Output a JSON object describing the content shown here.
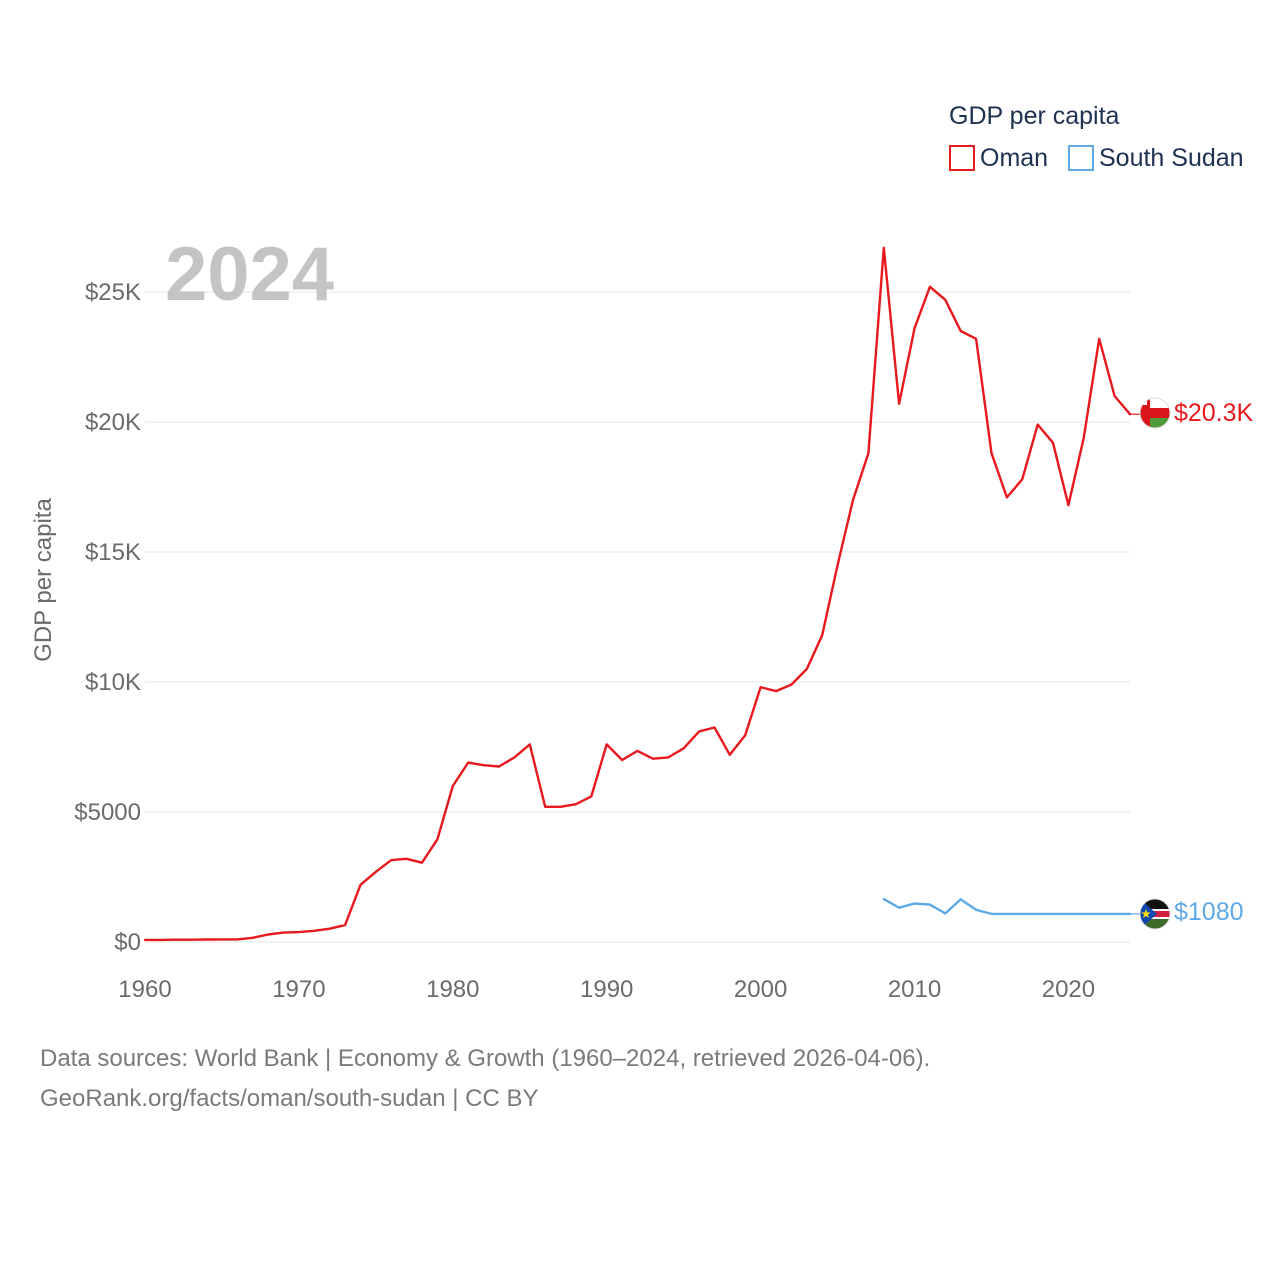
{
  "chart_data": {
    "type": "line",
    "title": "GDP per capita",
    "ylabel": "GDP per capita",
    "xlabel": "",
    "current_year": "2024",
    "xlim": [
      1960,
      2024
    ],
    "ylim": [
      0,
      25000
    ],
    "x_ticks": [
      1960,
      1970,
      1980,
      1990,
      2000,
      2010,
      2020
    ],
    "x_tick_labels": [
      "1960",
      "1970",
      "1980",
      "1990",
      "2000",
      "2010",
      "2020"
    ],
    "y_ticks": [
      0,
      5000,
      10000,
      15000,
      20000,
      25000
    ],
    "y_tick_labels": [
      "$0",
      "$5000",
      "$10K",
      "$15K",
      "$20K",
      "$25K"
    ],
    "legend": {
      "title": "GDP per capita",
      "position": "top-right"
    },
    "series": [
      {
        "name": "Oman",
        "color": "#e8191e",
        "end_label": "$20.3K",
        "x": [
          1960,
          1961,
          1962,
          1963,
          1964,
          1965,
          1966,
          1967,
          1968,
          1969,
          1970,
          1971,
          1972,
          1973,
          1974,
          1975,
          1976,
          1977,
          1978,
          1979,
          1980,
          1981,
          1982,
          1983,
          1984,
          1985,
          1986,
          1987,
          1988,
          1989,
          1990,
          1991,
          1992,
          1993,
          1994,
          1995,
          1996,
          1997,
          1998,
          1999,
          2000,
          2001,
          2002,
          2003,
          2004,
          2005,
          2006,
          2007,
          2008,
          2009,
          2010,
          2011,
          2012,
          2013,
          2014,
          2015,
          2016,
          2017,
          2018,
          2019,
          2020,
          2021,
          2022,
          2023,
          2024
        ],
        "values": [
          80,
          80,
          90,
          90,
          95,
          100,
          100,
          160,
          290,
          360,
          380,
          430,
          510,
          650,
          2200,
          2700,
          3150,
          3200,
          3050,
          3950,
          6000,
          6900,
          6800,
          6750,
          7100,
          7600,
          5200,
          5200,
          5300,
          5600,
          7600,
          7000,
          7350,
          7050,
          7100,
          7450,
          8100,
          8250,
          7200,
          7950,
          9800,
          9650,
          9900,
          10500,
          11800,
          14500,
          17000,
          18800,
          26700,
          20700,
          23600,
          25200,
          24700,
          23500,
          23200,
          18800,
          17100,
          17800,
          19900,
          19200,
          16800,
          19400,
          23200,
          21000,
          20300
        ]
      },
      {
        "name": "South Sudan",
        "color": "#5ea9e6",
        "end_label": "$1080",
        "x": [
          2008,
          2009,
          2010,
          2011,
          2012,
          2013,
          2014,
          2015,
          2016,
          2017,
          2018,
          2019,
          2020,
          2021,
          2022,
          2023,
          2024
        ],
        "values": [
          1650,
          1320,
          1480,
          1440,
          1100,
          1640,
          1240,
          1080,
          1080,
          1080,
          1080,
          1080,
          1080,
          1080,
          1080,
          1080,
          1080
        ]
      }
    ]
  },
  "footer": {
    "line1": "Data sources: World Bank | Economy & Growth (1960–2024, retrieved 2026-04-06).",
    "line2": "GeoRank.org/facts/oman/south-sudan | CC BY"
  }
}
